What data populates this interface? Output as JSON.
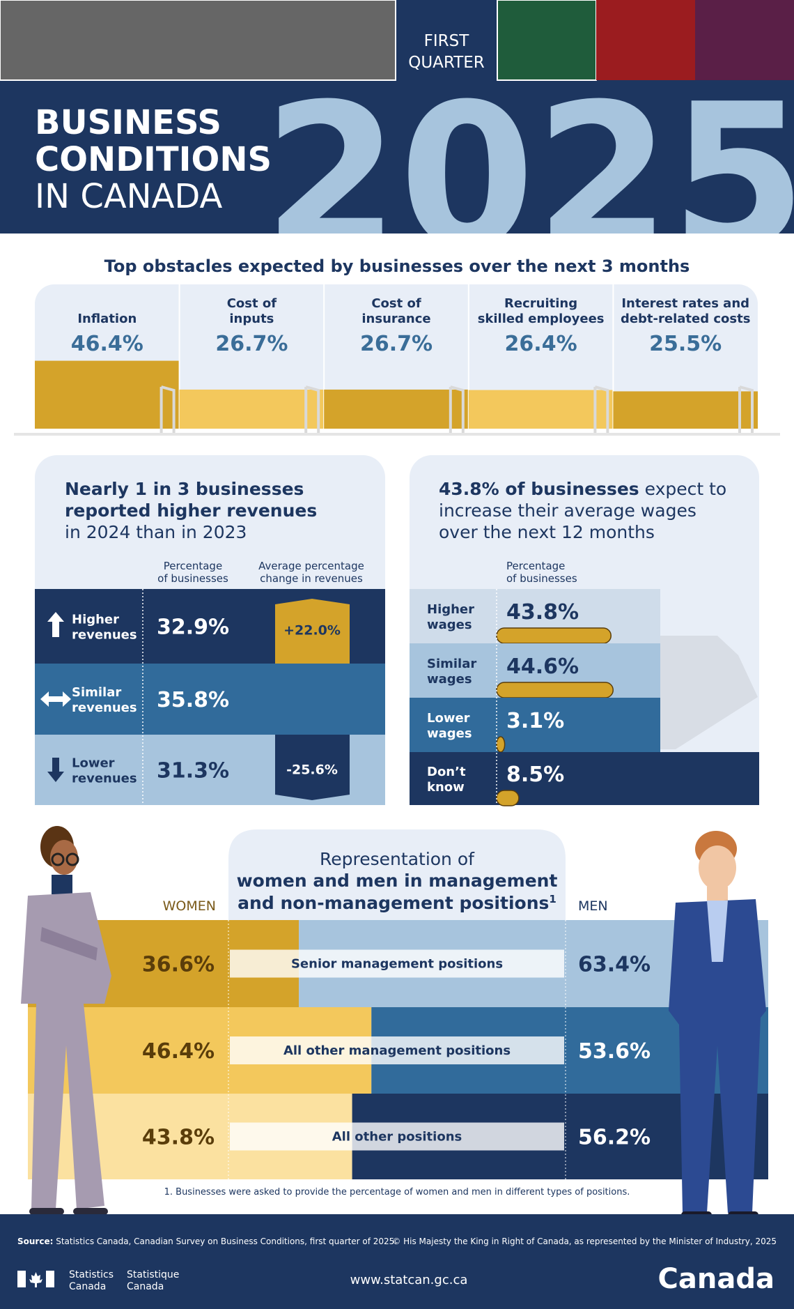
{
  "header": {
    "quarter_lines": [
      "FIRST",
      "QUARTER"
    ],
    "title_lines": [
      "BUSINESS",
      "CONDITIONS",
      "IN CANADA"
    ],
    "year": "2025"
  },
  "obstacles": {
    "title": "Top obstacles expected by businesses over the next 3 months",
    "items": [
      {
        "label_lines": [
          "Inflation"
        ],
        "share": {
          "value": 46.4,
          "label": "46.4%"
        }
      },
      {
        "label_lines": [
          "Cost of",
          "inputs"
        ],
        "share": {
          "value": 26.7,
          "label": "26.7%"
        }
      },
      {
        "label_lines": [
          "Cost of",
          "insurance"
        ],
        "share": {
          "value": 26.7,
          "label": "26.7%"
        }
      },
      {
        "label_lines": [
          "Recruiting",
          "skilled employees"
        ],
        "share": {
          "value": 26.4,
          "label": "26.4%"
        }
      },
      {
        "label_lines": [
          "Interest rates and",
          "debt-related costs"
        ],
        "share": {
          "value": 25.5,
          "label": "25.5%"
        }
      }
    ]
  },
  "revenues": {
    "title_bold_lines": [
      "Nearly 1 in 3 businesses",
      "reported higher revenues"
    ],
    "title_rest": "in 2024 than in 2023",
    "share_header": [
      "Percentage",
      "of businesses"
    ],
    "change_header": [
      "Average percentage",
      "change in revenues"
    ],
    "rows": [
      {
        "label_lines": [
          "Higher",
          "revenues"
        ],
        "share": {
          "value": 32.9,
          "label": "32.9%"
        },
        "change": {
          "value": 22.0,
          "label": "+22.0%"
        }
      },
      {
        "label_lines": [
          "Similar",
          "revenues"
        ],
        "share": {
          "value": 35.8,
          "label": "35.8%"
        }
      },
      {
        "label_lines": [
          "Lower",
          "revenues"
        ],
        "share": {
          "value": 31.3,
          "label": "31.3%"
        },
        "change": {
          "value": -25.6,
          "label": "-25.6%"
        }
      }
    ]
  },
  "wages": {
    "title_bold": "43.8% of businesses",
    "title_lines": [
      " expect to",
      "increase their average wages",
      "over the next 12 months"
    ],
    "share_header": [
      "Percentage",
      "of businesses"
    ],
    "rows": [
      {
        "label_lines": [
          "Higher",
          "wages"
        ],
        "share": {
          "value": 43.8,
          "label": "43.8%"
        }
      },
      {
        "label_lines": [
          "Similar",
          "wages"
        ],
        "share": {
          "value": 44.6,
          "label": "44.6%"
        }
      },
      {
        "label_lines": [
          "Lower",
          "wages"
        ],
        "share": {
          "value": 3.1,
          "label": "3.1%"
        }
      },
      {
        "label_lines": [
          "Don’t",
          "know"
        ],
        "share": {
          "value": 8.5,
          "label": "8.5%"
        }
      }
    ]
  },
  "representation": {
    "title_line": "Representation of",
    "title_bold_lines": [
      "women and men in management",
      "and non-management positions"
    ],
    "footnote_mark": "1",
    "women_label": "WOMEN",
    "men_label": "MEN",
    "rows": [
      {
        "label": "Senior management positions",
        "women": {
          "value": 36.6,
          "label": "36.6%"
        },
        "men": {
          "value": 63.4,
          "label": "63.4%"
        }
      },
      {
        "label": "All other management positions",
        "women": {
          "value": 46.4,
          "label": "46.4%"
        },
        "men": {
          "value": 53.6,
          "label": "53.6%"
        }
      },
      {
        "label": "All other positions",
        "women": {
          "value": 43.8,
          "label": "43.8%"
        },
        "men": {
          "value": 56.2,
          "label": "56.2%"
        }
      }
    ],
    "footnote": "1. Businesses were asked to provide the percentage of women and men in different types of positions."
  },
  "footer": {
    "source_label": "Source:",
    "source": " Statistics Canada, Canadian Survey on Business Conditions, first quarter of 2025.",
    "copyright": "© His Majesty the King in Right of Canada, as represented by the Minister of Industry, 2025",
    "agency_en": [
      "Statistics",
      "Canada"
    ],
    "agency_fr": [
      "Statistique",
      "Canada"
    ],
    "url": "www.statcan.gc.ca",
    "wordmark": "Canada"
  }
}
